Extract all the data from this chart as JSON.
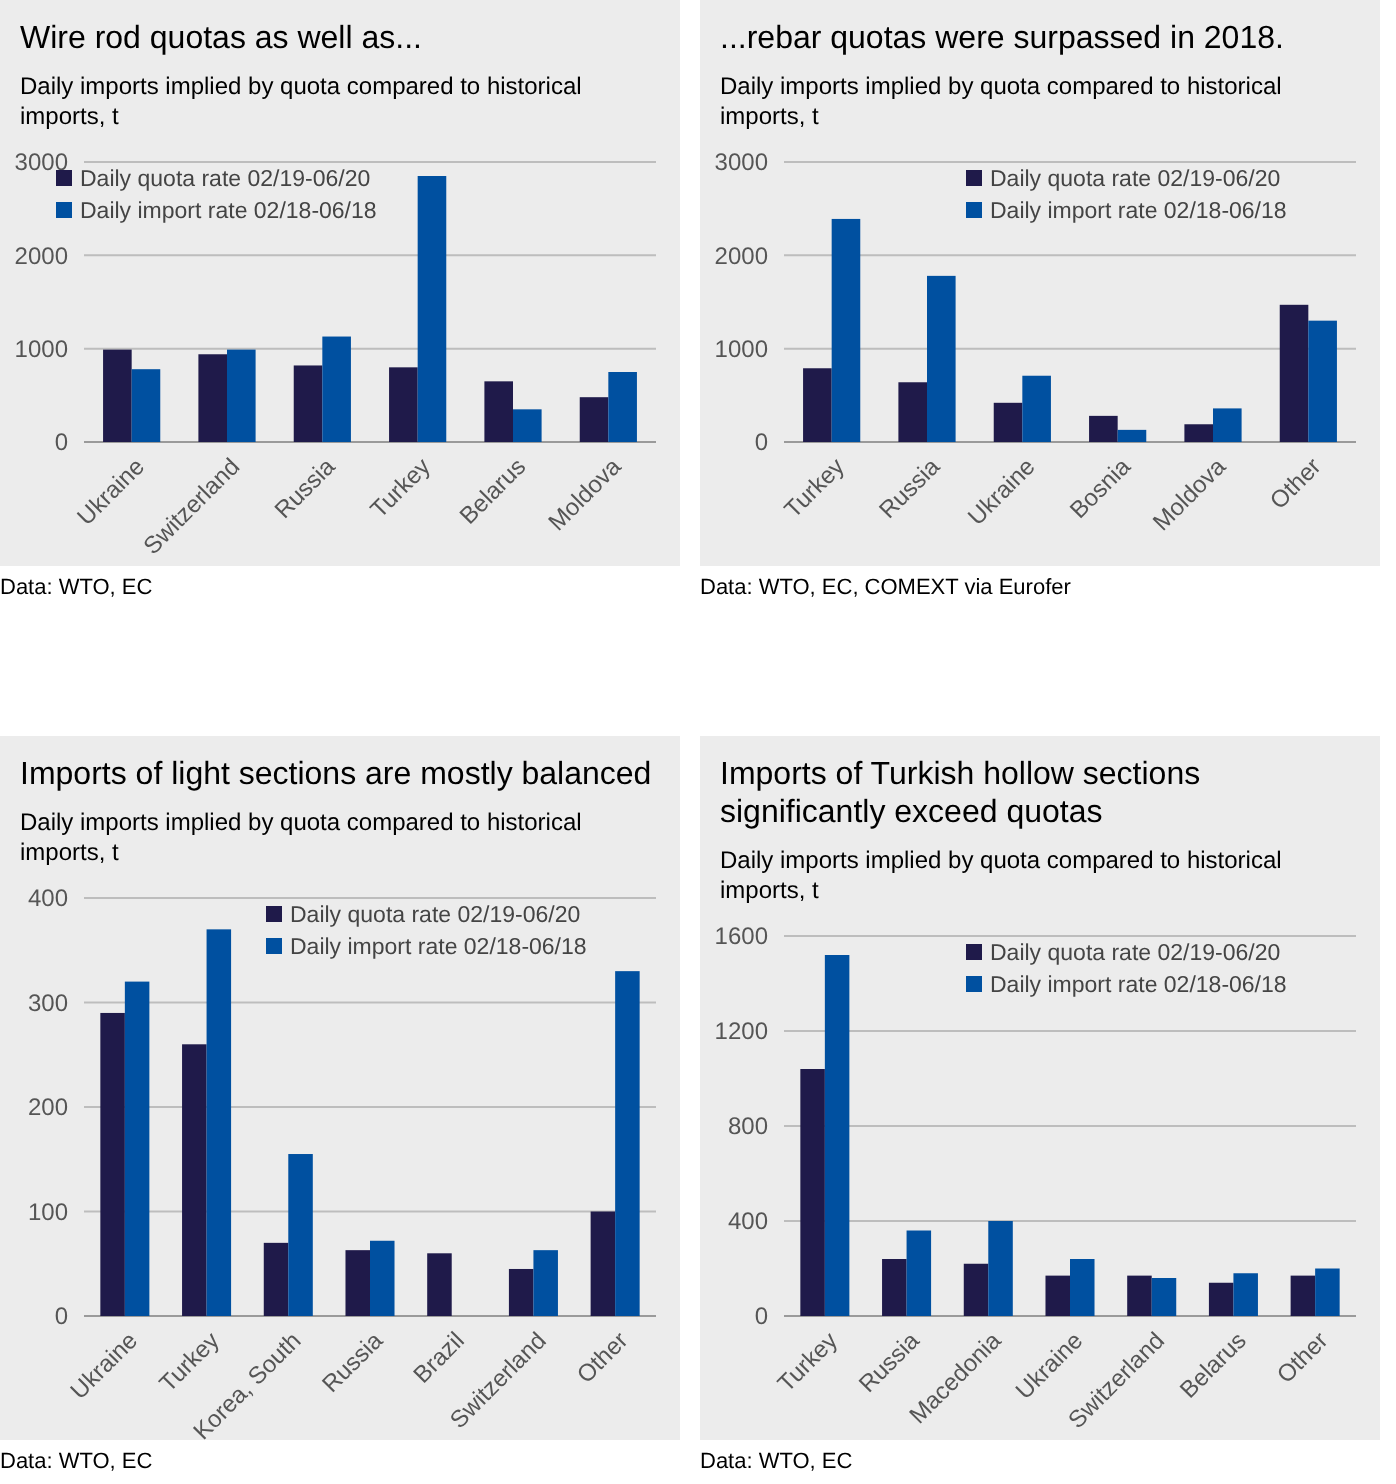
{
  "chart_data": [
    {
      "type": "bar",
      "title": "Wire rod quotas as well as...",
      "subtitle": "Daily imports implied by quota compared to historical imports, t",
      "categories": [
        "Ukraine",
        "Switzerland",
        "Russia",
        "Turkey",
        "Belarus",
        "Moldova"
      ],
      "series": [
        {
          "name": "Daily quota rate 02/19-06/20",
          "color": "#1f1a4a",
          "values": [
            990,
            940,
            820,
            800,
            650,
            480
          ]
        },
        {
          "name": "Daily import rate 02/18-06/18",
          "color": "#0050a0",
          "values": [
            780,
            990,
            1130,
            2850,
            350,
            750
          ]
        }
      ],
      "ylim": [
        0,
        3000
      ],
      "yticks": [
        0,
        1000,
        2000,
        3000
      ],
      "grid": "y",
      "legend": "top left",
      "annotations": [
        "Data: WTO, EC"
      ]
    },
    {
      "type": "bar",
      "title": "...rebar quotas were surpassed in 2018.",
      "subtitle": "Daily imports implied by quota compared to historical imports, t",
      "categories": [
        "Turkey",
        "Russia",
        "Ukraine",
        "Bosnia",
        "Moldova",
        "Other"
      ],
      "series": [
        {
          "name": "Daily quota rate 02/19-06/20",
          "color": "#1f1a4a",
          "values": [
            790,
            640,
            420,
            280,
            190,
            1470
          ]
        },
        {
          "name": "Daily import rate 02/18-06/18",
          "color": "#0050a0",
          "values": [
            2390,
            1780,
            710,
            130,
            360,
            1300
          ]
        }
      ],
      "ylim": [
        0,
        3000
      ],
      "yticks": [
        0,
        1000,
        2000,
        3000
      ],
      "grid": "y",
      "legend": "top right",
      "annotations": [
        "Data: WTO, EC, COMEXT via Eurofer"
      ]
    },
    {
      "type": "bar",
      "title": "Imports of light sections are mostly balanced",
      "subtitle": "Daily imports implied by quota compared to historical imports, t",
      "categories": [
        "Ukraine",
        "Turkey",
        "Korea, South",
        "Russia",
        "Brazil",
        "Switzerland",
        "Other"
      ],
      "series": [
        {
          "name": "Daily quota rate 02/19-06/20",
          "color": "#1f1a4a",
          "values": [
            290,
            260,
            70,
            63,
            60,
            45,
            100
          ]
        },
        {
          "name": "Daily import rate 02/18-06/18",
          "color": "#0050a0",
          "values": [
            320,
            370,
            155,
            72,
            null,
            63,
            330
          ]
        }
      ],
      "ylim": [
        0,
        400
      ],
      "yticks": [
        0,
        100,
        200,
        300,
        400
      ],
      "grid": "y",
      "legend": "top right",
      "annotations": [
        "Data: WTO, EC"
      ]
    },
    {
      "type": "bar",
      "title": "Imports of Turkish hollow sections significantly exceed quotas",
      "subtitle": "Daily imports implied by quota compared to historical imports, t",
      "categories": [
        "Turkey",
        "Russia",
        "Macedonia",
        "Ukraine",
        "Switzerland",
        "Belarus",
        "Other"
      ],
      "series": [
        {
          "name": "Daily quota rate 02/19-06/20",
          "color": "#1f1a4a",
          "values": [
            1040,
            240,
            220,
            170,
            170,
            140,
            170
          ]
        },
        {
          "name": "Daily import rate 02/18-06/18",
          "color": "#0050a0",
          "values": [
            1520,
            360,
            400,
            240,
            160,
            180,
            200
          ]
        }
      ],
      "ylim": [
        0,
        1600
      ],
      "yticks": [
        0,
        400,
        800,
        1200,
        1600
      ],
      "grid": "y",
      "legend": "top right",
      "annotations": [
        "Data: WTO, EC"
      ]
    }
  ]
}
